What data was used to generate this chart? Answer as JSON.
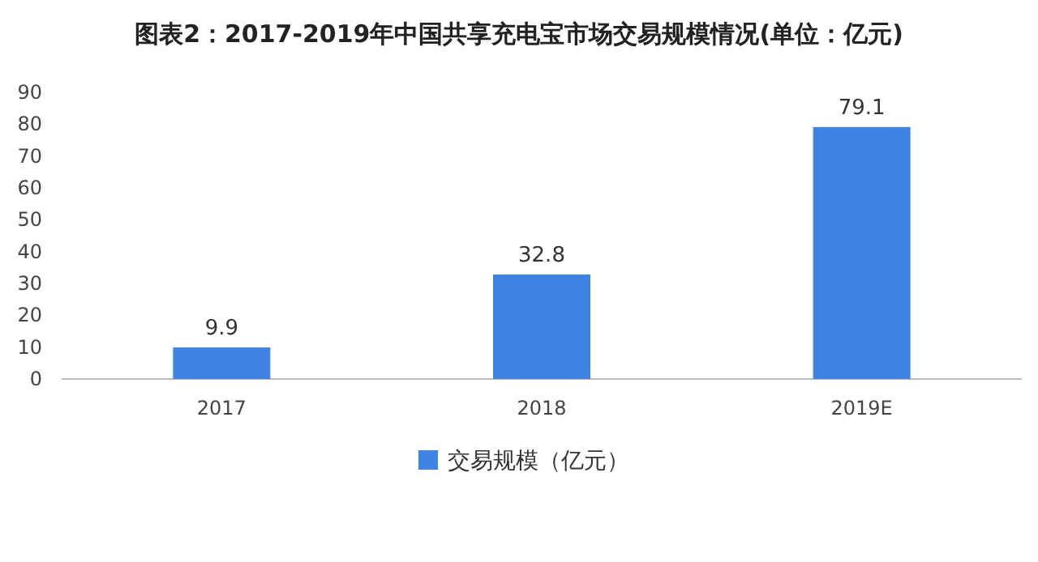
{
  "chart_data": {
    "type": "bar",
    "title": "图表2：2017-2019年中国共享充电宝市场交易规模情况(单位：亿元)",
    "categories": [
      "2017",
      "2018",
      "2019E"
    ],
    "series": [
      {
        "name": "交易规模（亿元）",
        "color": "#3f84e5",
        "values": [
          9.9,
          32.8,
          79.1
        ]
      }
    ],
    "ylim": [
      0,
      90
    ],
    "yticks": [
      0,
      10,
      20,
      30,
      40,
      50,
      60,
      70,
      80,
      90
    ],
    "data_labels": true,
    "legend": "bottom",
    "grid": false
  }
}
